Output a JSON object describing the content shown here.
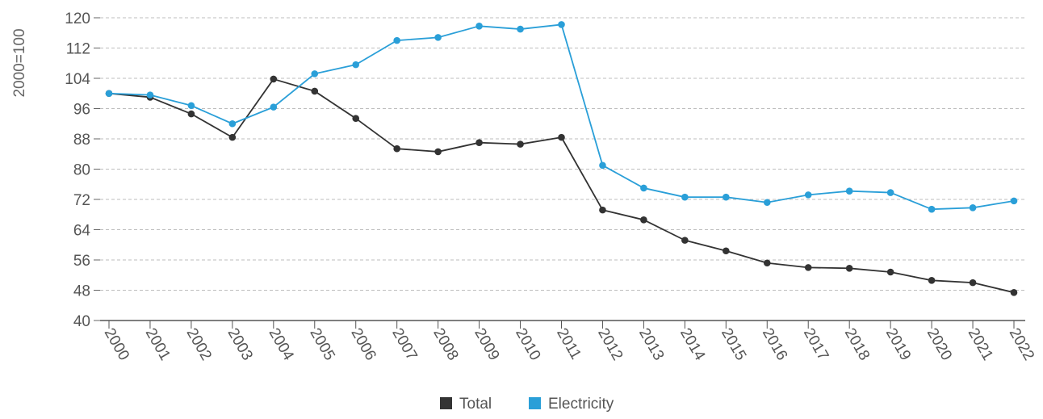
{
  "chart_data": {
    "type": "line",
    "title": "",
    "xlabel": "",
    "ylabel": "2000=100",
    "x": [
      "2000",
      "2001",
      "2002",
      "2003",
      "2004",
      "2005",
      "2006",
      "2007",
      "2008",
      "2009",
      "2010",
      "2011",
      "2012",
      "2013",
      "2014",
      "2015",
      "2016",
      "2017",
      "2018",
      "2019",
      "2020",
      "2021",
      "2022"
    ],
    "ylim": [
      40,
      120
    ],
    "yticks": [
      40,
      48,
      56,
      64,
      72,
      80,
      88,
      96,
      104,
      112,
      120
    ],
    "grid": true,
    "legend_position": "bottom",
    "series": [
      {
        "name": "Total",
        "color": "#333333",
        "values": [
          100,
          99,
          94.6,
          88.4,
          103.8,
          100.6,
          93.4,
          85.4,
          84.6,
          87,
          86.6,
          88.4,
          69.2,
          66.6,
          61.2,
          58.4,
          55.2,
          54,
          53.8,
          52.8,
          50.6,
          50,
          47.4
        ]
      },
      {
        "name": "Electricity",
        "color": "#2a9fd8",
        "values": [
          100,
          99.6,
          96.8,
          92,
          96.4,
          105.2,
          107.6,
          114,
          114.8,
          117.8,
          117,
          118.2,
          81,
          75,
          72.6,
          72.6,
          71.2,
          73.2,
          74.2,
          73.8,
          69.4,
          69.8,
          71.6
        ]
      }
    ]
  }
}
